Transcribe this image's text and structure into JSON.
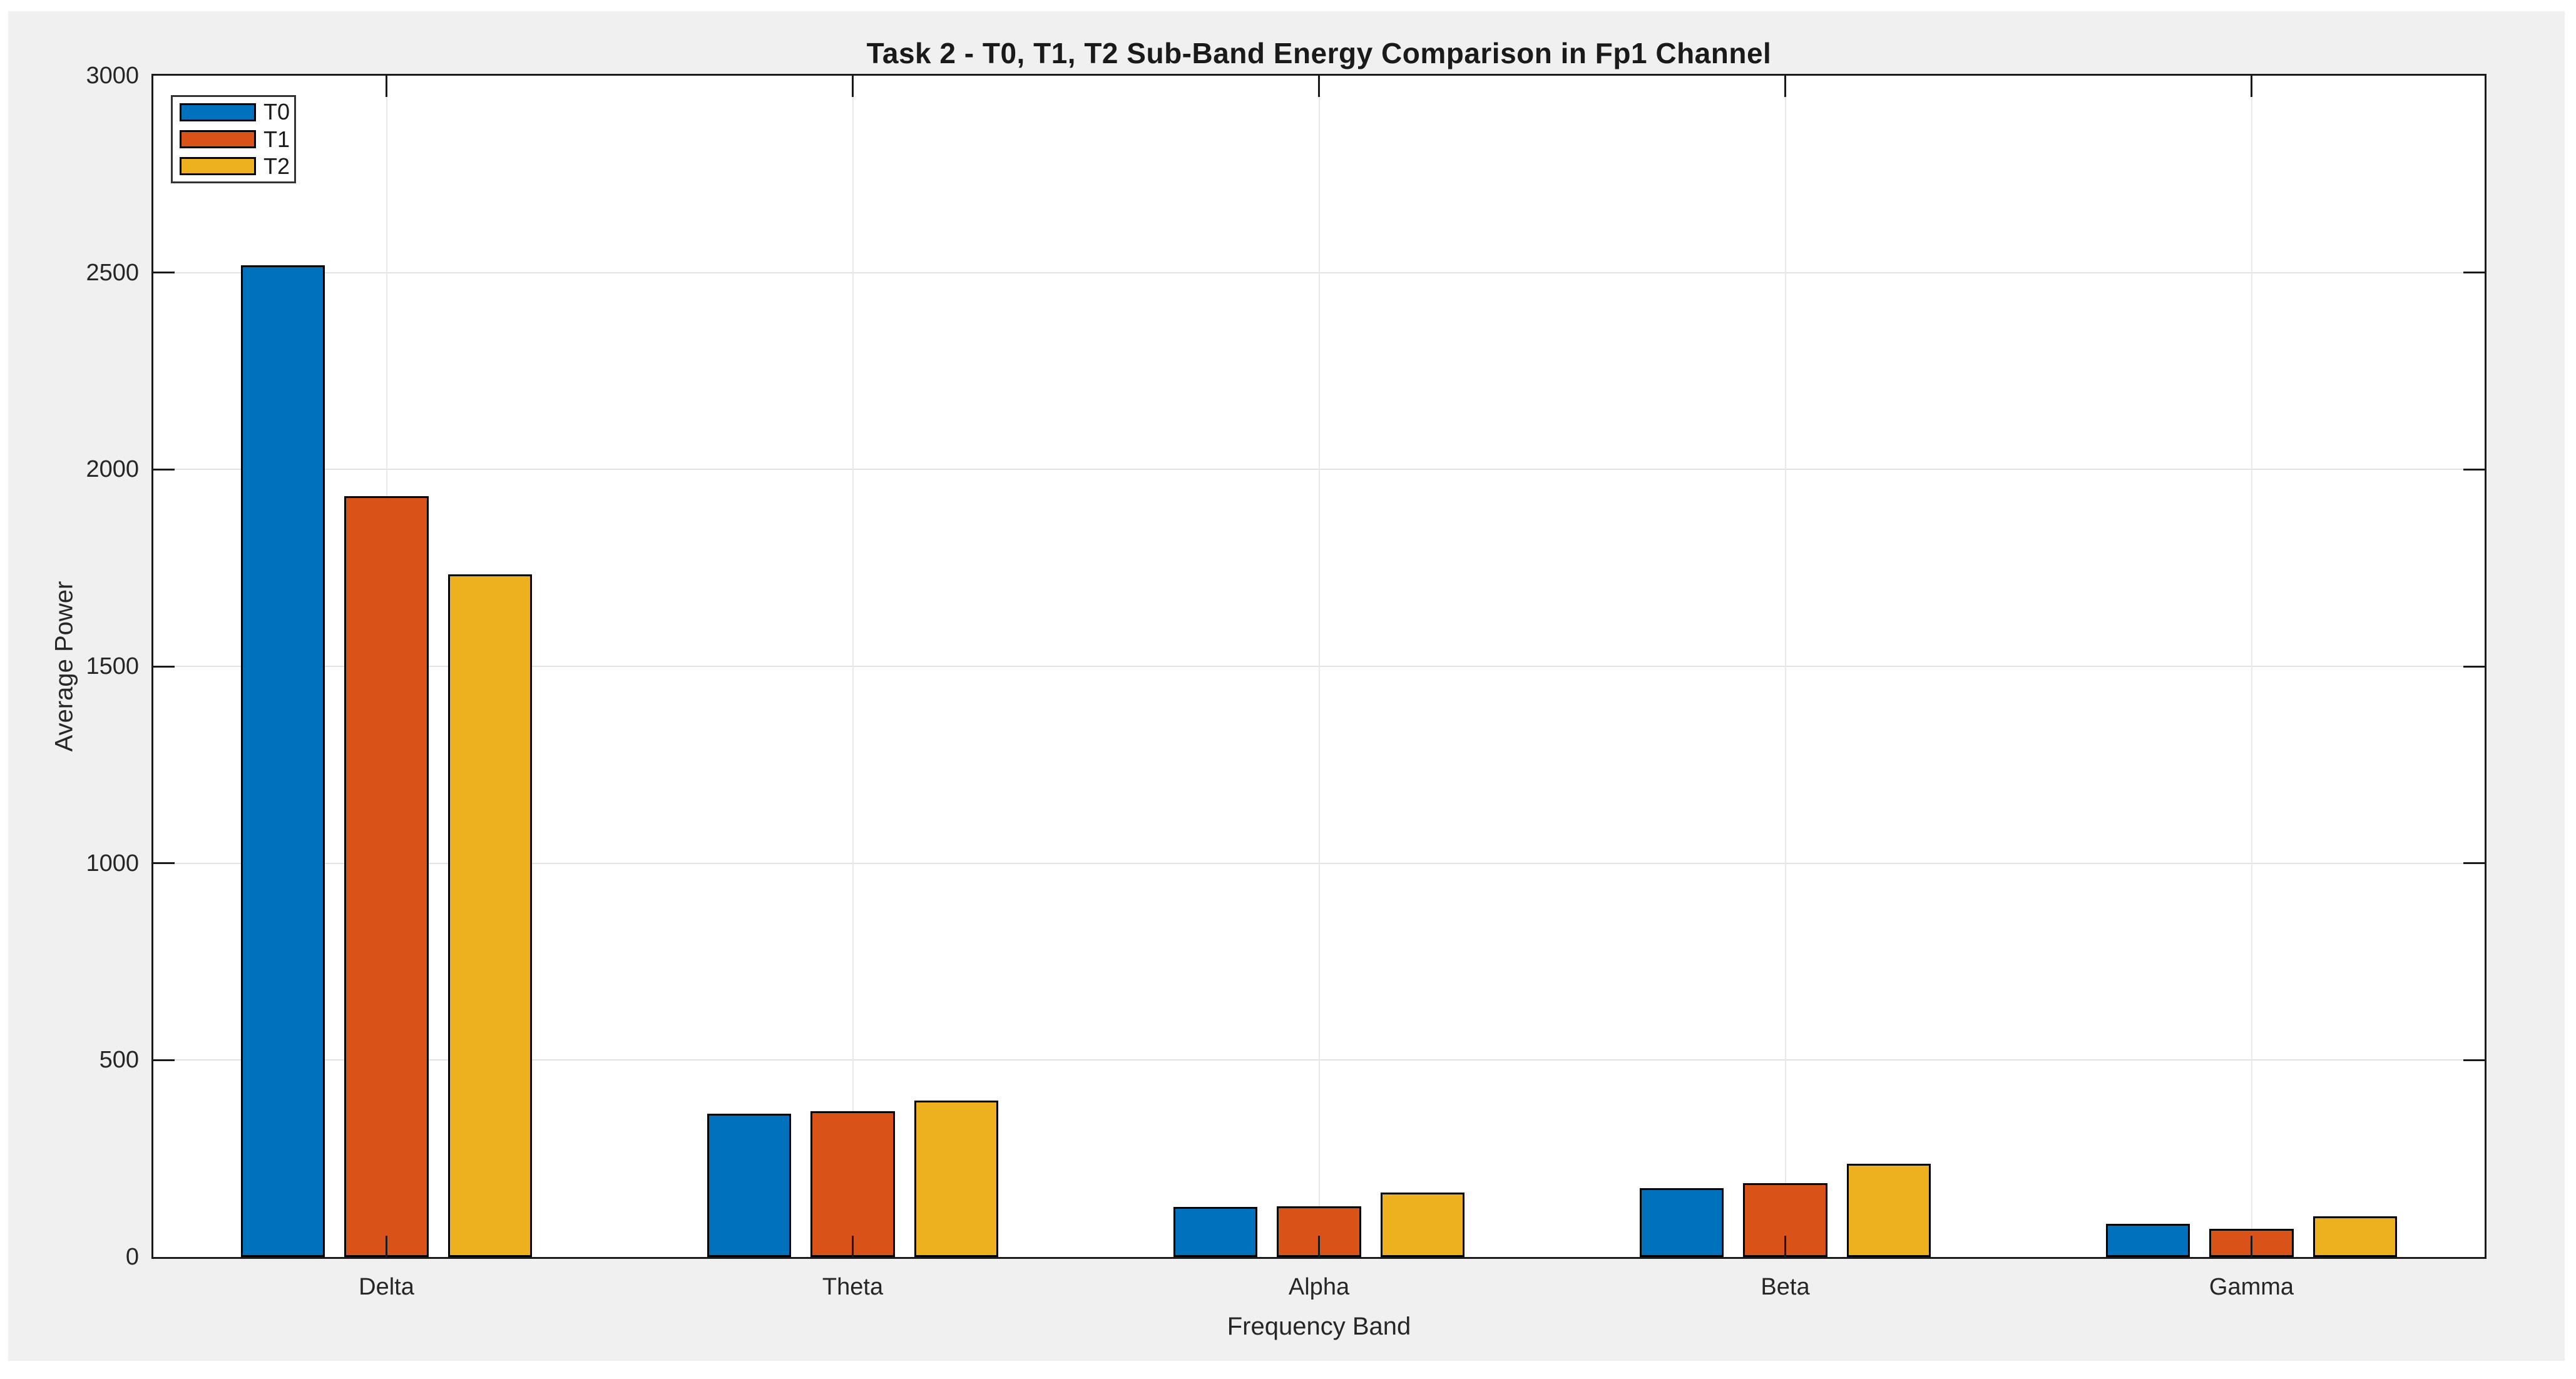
{
  "window": {
    "figure_background": "#f0f0f0",
    "plot_background": "#ffffff",
    "axis_color": "#1a1a1a",
    "grid_color": "#e2e2e2"
  },
  "chart_data": {
    "type": "bar",
    "title": "Task 2 - T0, T1, T2 Sub-Band Energy Comparison in Fp1 Channel",
    "xlabel": "Frequency Band",
    "ylabel": "Average Power",
    "categories": [
      "Delta",
      "Theta",
      "Alpha",
      "Beta",
      "Gamma"
    ],
    "series": [
      {
        "name": "T0",
        "color": "#0072BD",
        "values": [
          2519,
          364,
          127,
          175,
          84
        ]
      },
      {
        "name": "T1",
        "color": "#D95319",
        "values": [
          1932,
          371,
          128,
          188,
          72
        ]
      },
      {
        "name": "T2",
        "color": "#EDB120",
        "values": [
          1734,
          398,
          163,
          236,
          104
        ]
      }
    ],
    "ylim": [
      0,
      3000
    ],
    "yticks": [
      0,
      500,
      1000,
      1500,
      2000,
      2500,
      3000
    ],
    "grid": true,
    "legend_position": "top-left",
    "bar_width_fraction": 0.18,
    "bar_offset_fraction": 0.2225
  }
}
